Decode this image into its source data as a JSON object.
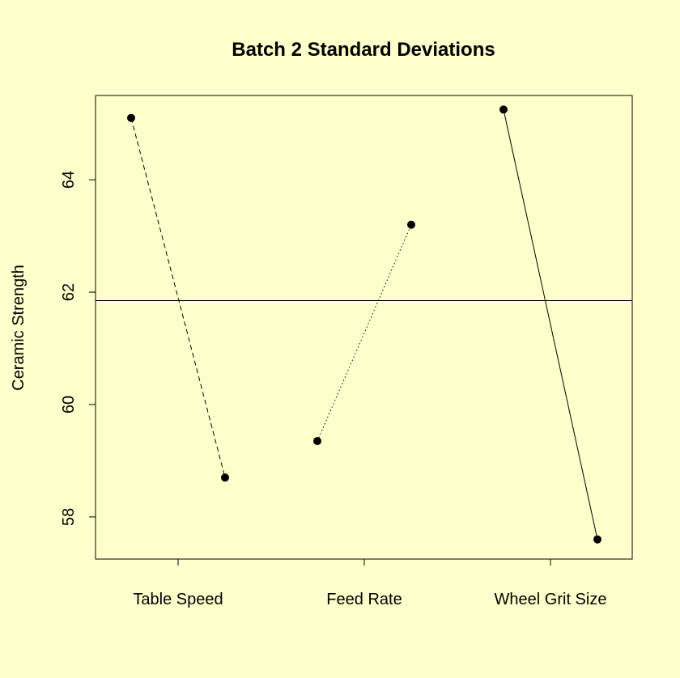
{
  "chart_data": {
    "type": "scatter",
    "title": "Batch 2 Standard Deviations",
    "xlabel": "",
    "ylabel": "Ceramic Strength",
    "categories": [
      "Table Speed",
      "Feed Rate",
      "Wheel Grit Size"
    ],
    "ylim": [
      57.25,
      65.5
    ],
    "yticks": [
      "58",
      "60",
      "62",
      "64"
    ],
    "reference_line": 61.85,
    "series": [
      {
        "category": "Table Speed",
        "values": [
          65.1,
          58.7
        ],
        "line_style": "dashed"
      },
      {
        "category": "Feed Rate",
        "values": [
          59.35,
          63.2
        ],
        "line_style": "dotted"
      },
      {
        "category": "Wheel Grit Size",
        "values": [
          65.25,
          57.6
        ],
        "line_style": "solid"
      }
    ],
    "colors": {
      "background": "#ffffcc",
      "ink": "#000000"
    }
  }
}
